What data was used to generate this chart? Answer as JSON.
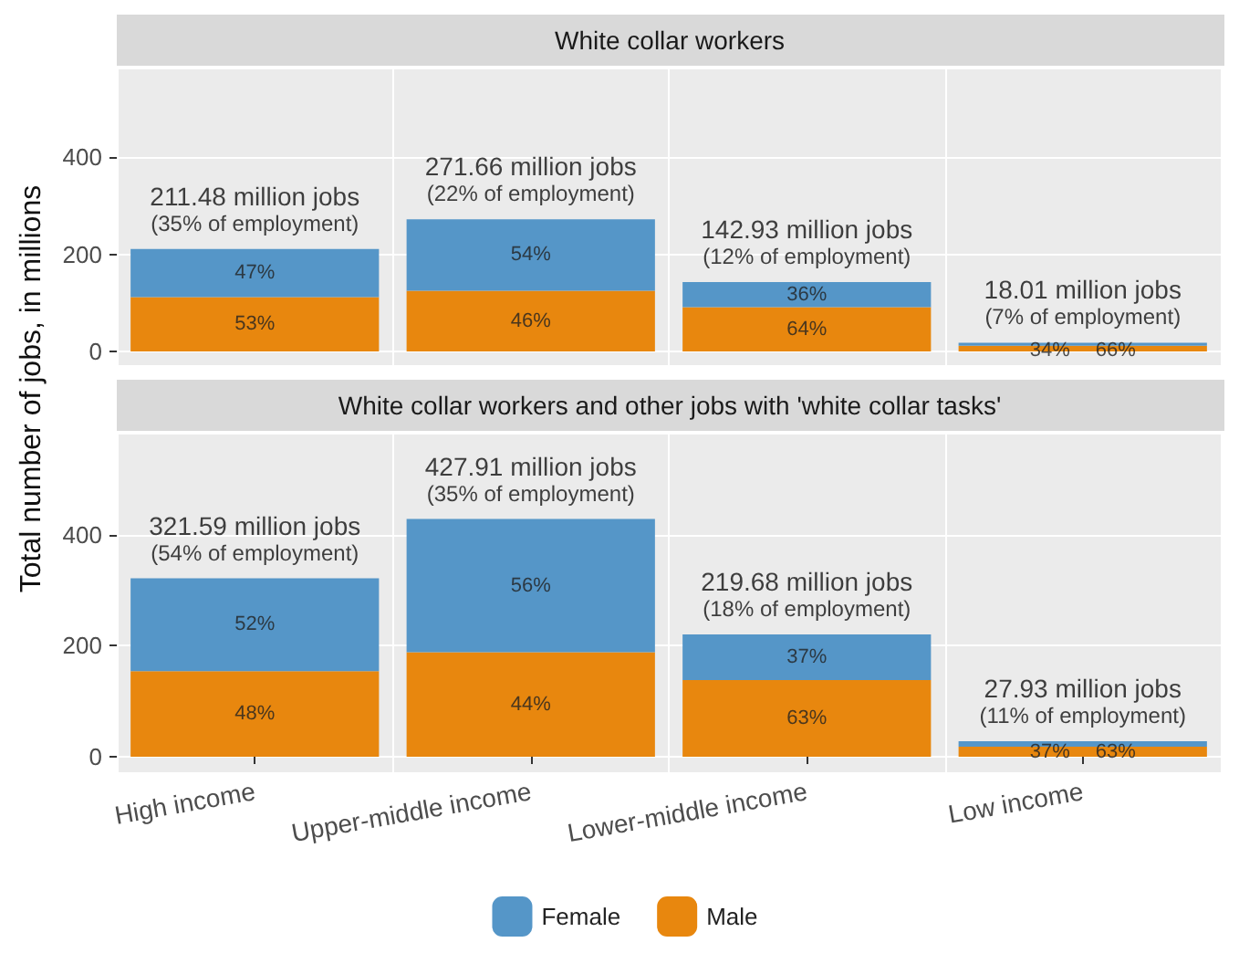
{
  "chart_data": [
    {
      "type": "bar",
      "title": "White collar workers",
      "ylabel": "Total number of jobs, in millions",
      "categories": [
        null,
        null,
        null,
        null
      ],
      "stacked": true,
      "ylim": [
        -28,
        580
      ],
      "yticks": [
        0,
        200,
        400
      ],
      "grid": true,
      "legend": false,
      "tick_labels": "y",
      "series": [
        {
          "color": "#e8870e",
          "values": [
            112,
            125,
            91,
            12
          ]
        },
        {
          "color": "#5596c8",
          "values": [
            99,
            147,
            52,
            6
          ]
        }
      ],
      "totals": [
        "211.48 million jobs\n(35% of employment)",
        "271.66 million jobs\n(22% of employment)",
        "142.93 million jobs\n(12% of employment)",
        "18.01 million jobs\n(7% of employment)"
      ],
      "annotations": [
        "53%",
        "47%",
        "46%",
        "54%",
        "64%",
        "36%",
        "66%",
        "34%"
      ]
    },
    {
      "type": "bar",
      "title": "White collar workers and other jobs with 'white collar tasks'",
      "categories": [
        "High income",
        "Upper-middle income",
        "Lower-middle income",
        "Low income"
      ],
      "stacked": true,
      "ylim": [
        -28,
        580
      ],
      "yticks": [
        0,
        200,
        400
      ],
      "grid": true,
      "legend": "bottom",
      "series": [
        {
          "name": "Male",
          "color": "#e8870e",
          "values": [
            154,
            188,
            138,
            18
          ]
        },
        {
          "name": "Female",
          "color": "#5596c8",
          "values": [
            167,
            240,
            82,
            10
          ]
        }
      ],
      "totals": [
        "321.59 million jobs\n(54% of employment)",
        "427.91 million jobs\n(35% of employment)",
        "219.68 million jobs\n(18% of employment)",
        "27.93 million jobs\n(11% of employment)"
      ],
      "annotations": [
        "48%",
        "52%",
        "44%",
        "56%",
        "63%",
        "37%",
        "63%",
        "37%"
      ]
    }
  ]
}
